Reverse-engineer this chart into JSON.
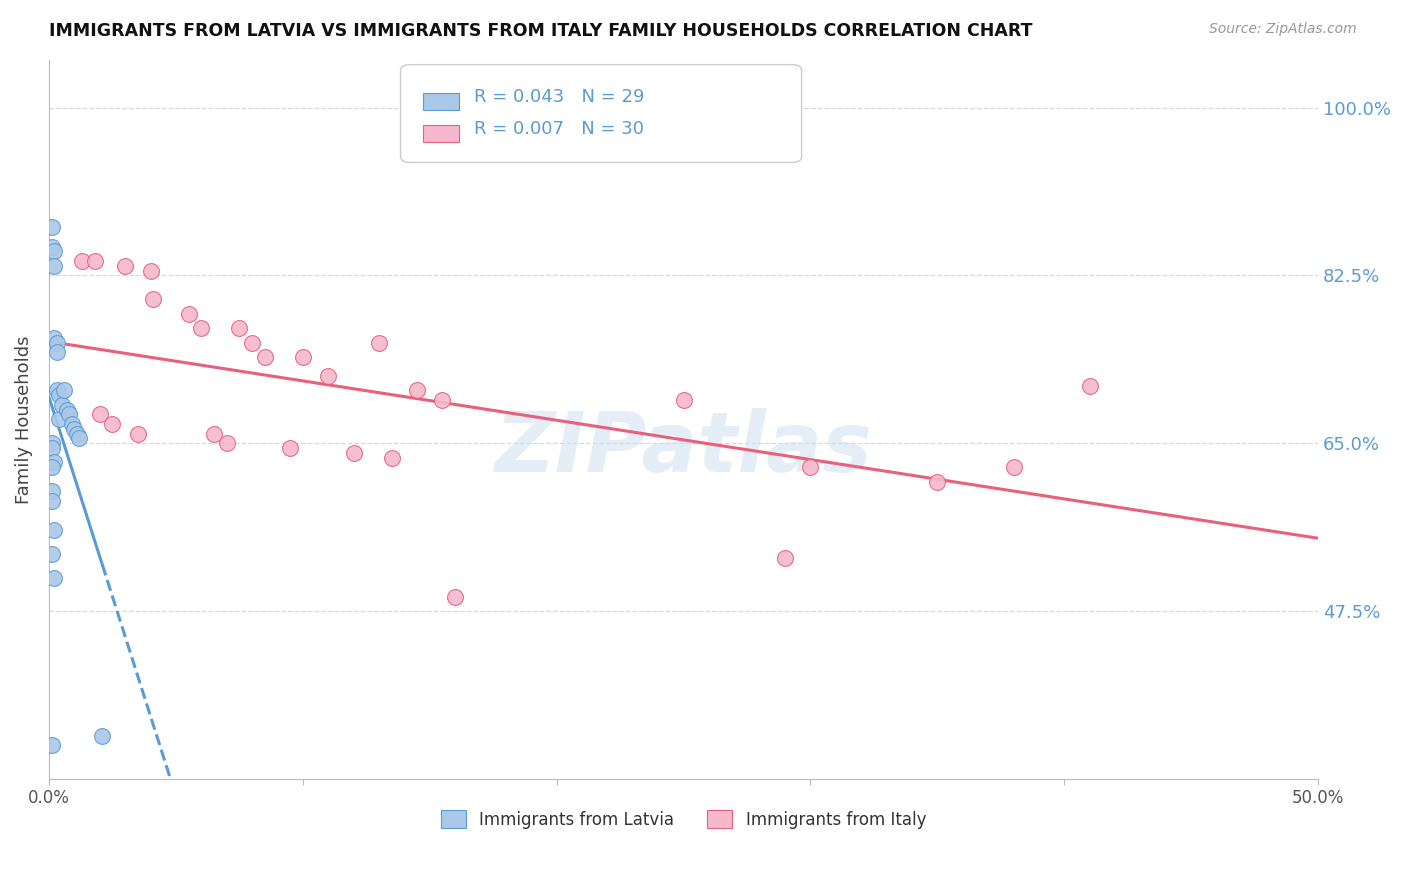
{
  "title": "IMMIGRANTS FROM LATVIA VS IMMIGRANTS FROM ITALY FAMILY HOUSEHOLDS CORRELATION CHART",
  "source": "Source: ZipAtlas.com",
  "ylabel_label": "Family Households",
  "x_min": 0.0,
  "x_max": 0.5,
  "y_min": 0.3,
  "y_max": 1.05,
  "y_ticks": [
    0.475,
    0.65,
    0.825,
    1.0
  ],
  "y_tick_labels": [
    "47.5%",
    "65.0%",
    "82.5%",
    "100.0%"
  ],
  "x_ticks": [
    0.0,
    0.1,
    0.2,
    0.3,
    0.4,
    0.5
  ],
  "x_tick_labels": [
    "0.0%",
    "",
    "",
    "",
    "",
    "50.0%"
  ],
  "background_color": "#ffffff",
  "grid_color": "#d8d8d8",
  "latvia_fill": "#aac8e8",
  "latvia_edge": "#5b9bd5",
  "italy_fill": "#f5b8cc",
  "italy_edge": "#e8607a",
  "latvia_line_color": "#5b9bd5",
  "italy_line_color": "#e8607a",
  "legend_latvia_R": "0.043",
  "legend_latvia_N": "29",
  "legend_italy_R": "0.007",
  "legend_italy_N": "30",
  "watermark": "ZIPatlas",
  "latvia_x": [
    0.001,
    0.001,
    0.002,
    0.002,
    0.002,
    0.003,
    0.003,
    0.003,
    0.004,
    0.004,
    0.005,
    0.006,
    0.007,
    0.008,
    0.009,
    0.01,
    0.011,
    0.012,
    0.001,
    0.001,
    0.002,
    0.001,
    0.001,
    0.001,
    0.002,
    0.001,
    0.002,
    0.001,
    0.021
  ],
  "latvia_y": [
    0.875,
    0.855,
    0.85,
    0.835,
    0.76,
    0.755,
    0.745,
    0.705,
    0.7,
    0.675,
    0.69,
    0.705,
    0.685,
    0.68,
    0.67,
    0.665,
    0.66,
    0.655,
    0.65,
    0.645,
    0.63,
    0.625,
    0.6,
    0.59,
    0.56,
    0.535,
    0.51,
    0.335,
    0.345
  ],
  "italy_x": [
    0.013,
    0.018,
    0.03,
    0.04,
    0.041,
    0.055,
    0.06,
    0.075,
    0.08,
    0.085,
    0.1,
    0.11,
    0.13,
    0.145,
    0.155,
    0.25,
    0.41,
    0.02,
    0.025,
    0.035,
    0.065,
    0.07,
    0.095,
    0.12,
    0.135,
    0.35,
    0.38,
    0.3,
    0.29,
    0.16
  ],
  "italy_y": [
    0.84,
    0.84,
    0.835,
    0.83,
    0.8,
    0.785,
    0.77,
    0.77,
    0.755,
    0.74,
    0.74,
    0.72,
    0.755,
    0.705,
    0.695,
    0.695,
    0.71,
    0.68,
    0.67,
    0.66,
    0.66,
    0.65,
    0.645,
    0.64,
    0.635,
    0.61,
    0.625,
    0.625,
    0.53,
    0.49
  ]
}
